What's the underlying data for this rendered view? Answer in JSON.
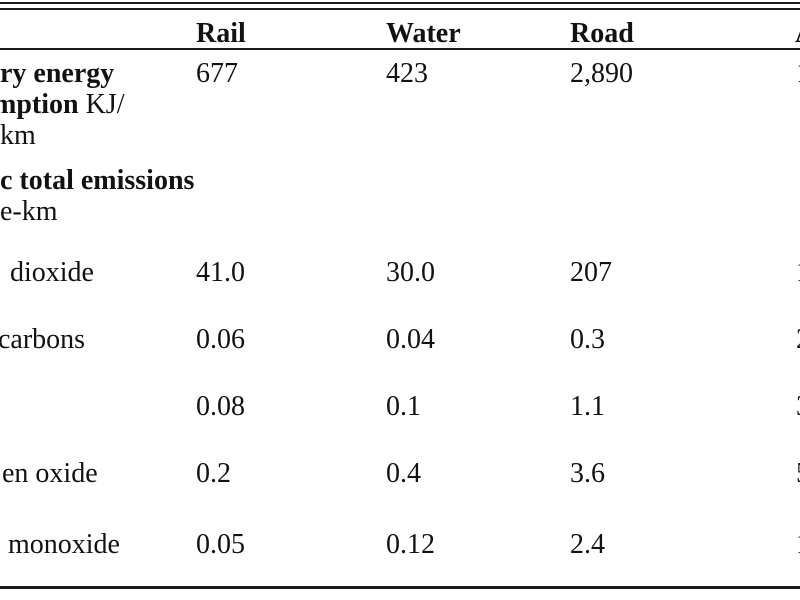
{
  "table": {
    "header": {
      "rail": "Rail",
      "water": "Water",
      "road": "Road",
      "edge_fragment": "A"
    },
    "energy_row": {
      "label_line1": "ry energy",
      "label_line2_bold": "mption",
      "label_line2_unit": " KJ/",
      "label_line3": "km",
      "rail": "677",
      "water": "423",
      "road": "2,890",
      "edge_fragment": "1"
    },
    "section_header": {
      "line1": "c total emissions",
      "line2": "e-km"
    },
    "emission_rows": [
      {
        "label": "dioxide",
        "rail": "41.0",
        "water": "30.0",
        "road": "207",
        "edge_fragment": "1"
      },
      {
        "label": "carbons",
        "rail": "0.06",
        "water": "0.04",
        "road": "0.3",
        "edge_fragment": "2"
      },
      {
        "label": "",
        "rail": "0.08",
        "water": "0.1",
        "road": "1.1",
        "edge_fragment": "3"
      },
      {
        "label": "en oxide",
        "rail": "0.2",
        "water": "0.4",
        "road": "3.6",
        "edge_fragment": "5"
      },
      {
        "label": "monoxide",
        "rail": "0.05",
        "water": "0.12",
        "road": "2.4",
        "edge_fragment": "1"
      }
    ]
  }
}
